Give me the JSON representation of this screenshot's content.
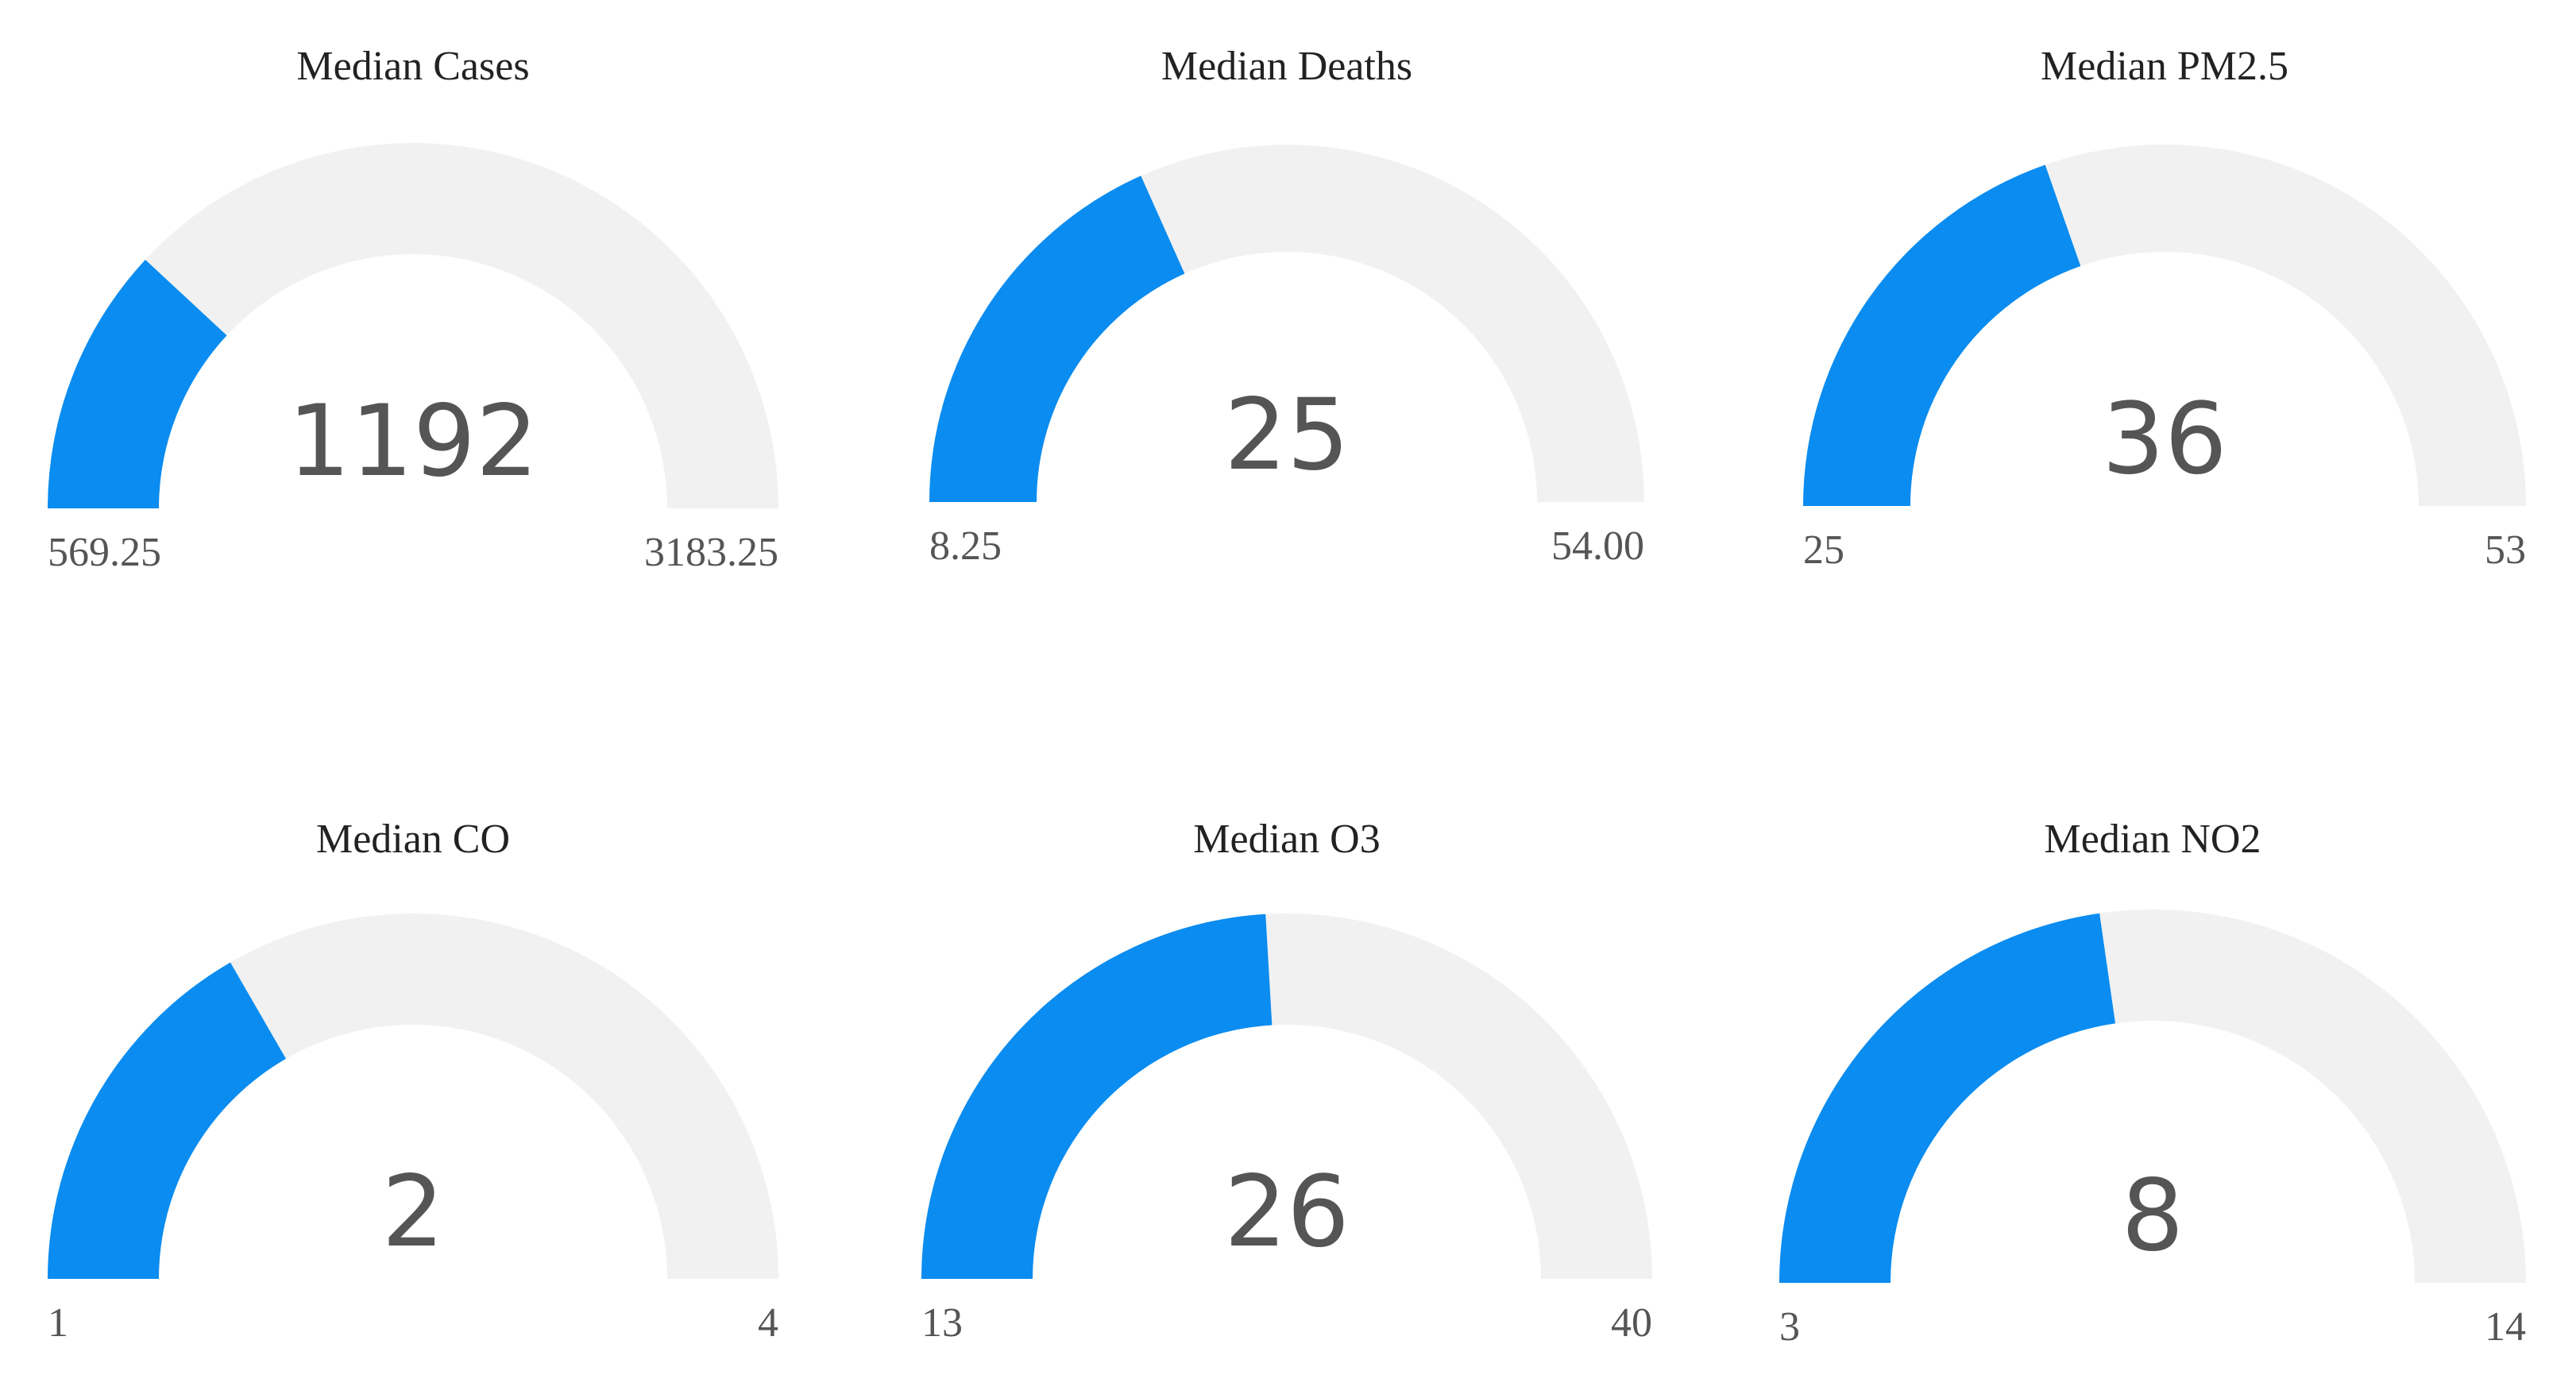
{
  "colors": {
    "fill": "#0a8cf0",
    "track": "#f1f1f1",
    "title": "#222222",
    "value": "#555555",
    "range": "#555555"
  },
  "chart_data": [
    {
      "type": "gauge",
      "title": "Median Cases",
      "value": 1192,
      "value_label": "1192",
      "min": 569.25,
      "max": 3183.25,
      "min_label": "569.25",
      "max_label": "3183.25"
    },
    {
      "type": "gauge",
      "title": "Median Deaths",
      "value": 25,
      "value_label": "25",
      "min": 8.25,
      "max": 54.0,
      "min_label": "8.25",
      "max_label": "54.00"
    },
    {
      "type": "gauge",
      "title": "Median PM2.5",
      "value": 36,
      "value_label": "36",
      "min": 25,
      "max": 53,
      "min_label": "25",
      "max_label": "53"
    },
    {
      "type": "gauge",
      "title": "Median CO",
      "value": 2,
      "value_label": "2",
      "min": 1,
      "max": 4,
      "min_label": "1",
      "max_label": "4"
    },
    {
      "type": "gauge",
      "title": "Median O3",
      "value": 26,
      "value_label": "26",
      "min": 13,
      "max": 40,
      "min_label": "13",
      "max_label": "40"
    },
    {
      "type": "gauge",
      "title": "Median NO2",
      "value": 8,
      "value_label": "8",
      "min": 3,
      "max": 14,
      "min_label": "3",
      "max_label": "14"
    }
  ]
}
